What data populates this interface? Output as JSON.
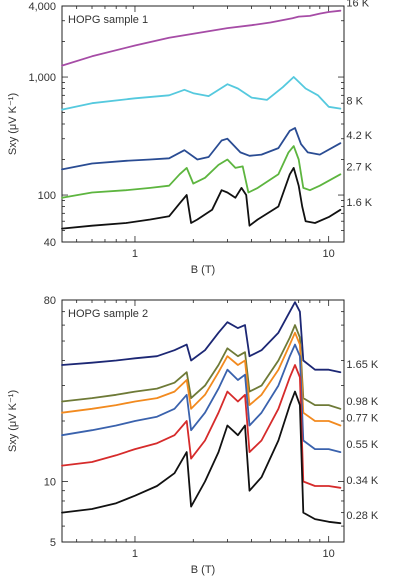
{
  "chart_data": [
    {
      "type": "line",
      "title": "HOPG sample 1",
      "xlabel": "B (T)",
      "ylabel": "Sxy (μV K⁻¹)",
      "xscale": "log",
      "yscale": "log",
      "xlim": [
        0.42,
        12
      ],
      "ylim": [
        40,
        4000
      ],
      "xticks": [
        1,
        10
      ],
      "xtick_labels": [
        "1",
        "10"
      ],
      "yticks": [
        40,
        100,
        1000,
        4000
      ],
      "ytick_labels": [
        "40",
        "100",
        "1,000",
        "4,000"
      ],
      "grid": false,
      "legend": "inline labels at right end of each curve",
      "series": [
        {
          "name": "16 K",
          "color": "#a64ca6",
          "x": [
            0.42,
            0.6,
            1.0,
            1.5,
            2.0,
            3.0,
            4.0,
            5.0,
            6.5,
            7.0,
            8.0,
            9.0,
            10.0,
            11.5
          ],
          "y": [
            1250,
            1500,
            1850,
            2150,
            2330,
            2600,
            2750,
            2900,
            3150,
            3250,
            3300,
            3450,
            3560,
            3650
          ]
        },
        {
          "name": "8 K",
          "color": "#55c9de",
          "x": [
            0.42,
            0.6,
            1.0,
            1.5,
            1.8,
            2.0,
            2.4,
            3.0,
            3.4,
            4.0,
            4.8,
            5.8,
            6.6,
            7.6,
            8.8,
            10.0,
            11.5
          ],
          "y": [
            530,
            600,
            660,
            700,
            780,
            730,
            690,
            870,
            800,
            670,
            640,
            820,
            1000,
            800,
            700,
            560,
            540
          ]
        },
        {
          "name": "4.2 K",
          "color": "#2a4c93",
          "x": [
            0.42,
            0.6,
            0.9,
            1.2,
            1.5,
            1.8,
            2.1,
            2.4,
            2.8,
            3.0,
            3.5,
            3.9,
            4.5,
            5.5,
            6.3,
            6.7,
            7.2,
            7.8,
            9.0,
            11.5
          ],
          "y": [
            165,
            185,
            195,
            200,
            205,
            240,
            200,
            210,
            290,
            300,
            230,
            215,
            220,
            250,
            350,
            370,
            270,
            230,
            220,
            275
          ]
        },
        {
          "name": "2.7 K",
          "color": "#5db53f",
          "x": [
            0.42,
            0.6,
            0.9,
            1.2,
            1.5,
            1.7,
            1.85,
            2.0,
            2.3,
            2.7,
            3.0,
            3.3,
            3.6,
            3.85,
            4.3,
            5.5,
            6.2,
            6.6,
            7.0,
            7.4,
            8.0,
            9.0,
            11.5
          ],
          "y": [
            95,
            105,
            110,
            115,
            120,
            150,
            170,
            125,
            140,
            180,
            200,
            170,
            175,
            105,
            115,
            150,
            230,
            260,
            200,
            115,
            110,
            120,
            150
          ]
        },
        {
          "name": "1.6 K",
          "color": "#111111",
          "x": [
            0.42,
            0.6,
            0.9,
            1.2,
            1.5,
            1.7,
            1.85,
            1.95,
            2.1,
            2.5,
            2.8,
            3.0,
            3.3,
            3.55,
            3.75,
            3.9,
            4.3,
            5.5,
            6.3,
            6.6,
            7.0,
            7.3,
            7.6,
            8.5,
            10.0,
            11.5
          ],
          "y": [
            52,
            55,
            58,
            62,
            66,
            85,
            100,
            58,
            62,
            75,
            110,
            105,
            95,
            115,
            100,
            55,
            62,
            80,
            150,
            170,
            120,
            80,
            60,
            58,
            65,
            75
          ]
        }
      ]
    },
    {
      "type": "line",
      "title": "HOPG sample 2",
      "xlabel": "B (T)",
      "ylabel": "Sxy (μV K⁻¹)",
      "xscale": "log",
      "yscale": "log",
      "xlim": [
        0.42,
        12
      ],
      "ylim": [
        5,
        80
      ],
      "xticks": [
        1,
        10
      ],
      "xtick_labels": [
        "1",
        "10"
      ],
      "yticks": [
        5,
        10,
        80
      ],
      "ytick_labels": [
        "5",
        "10",
        "80"
      ],
      "grid": false,
      "legend": "inline labels at right end of each curve",
      "series": [
        {
          "name": "1.65 K",
          "color": "#1c2774",
          "x": [
            0.42,
            0.6,
            0.8,
            1.0,
            1.3,
            1.6,
            1.85,
            1.95,
            2.3,
            2.7,
            3.0,
            3.4,
            3.7,
            3.9,
            4.5,
            5.5,
            6.3,
            6.7,
            7.1,
            7.4,
            8.5,
            10.0,
            11.5
          ],
          "y": [
            38,
            39,
            40,
            41,
            42,
            45,
            48,
            40,
            45,
            55,
            62,
            58,
            60,
            42,
            45,
            55,
            70,
            78,
            70,
            40,
            36,
            36,
            35
          ]
        },
        {
          "name": "0.98 K",
          "color": "#6e7a37",
          "x": [
            0.42,
            0.6,
            0.8,
            1.0,
            1.3,
            1.6,
            1.85,
            1.95,
            2.3,
            2.7,
            3.0,
            3.4,
            3.7,
            3.9,
            4.5,
            5.5,
            6.3,
            6.7,
            7.1,
            7.4,
            8.5,
            10.0,
            11.5
          ],
          "y": [
            25,
            26,
            27,
            28,
            29,
            31,
            35,
            26,
            30,
            38,
            46,
            42,
            44,
            28,
            30,
            40,
            52,
            60,
            52,
            26,
            24,
            24,
            23
          ]
        },
        {
          "name": "0.77 K",
          "color": "#f28a1f",
          "x": [
            0.42,
            0.6,
            0.8,
            1.0,
            1.3,
            1.6,
            1.85,
            1.95,
            2.3,
            2.7,
            3.0,
            3.4,
            3.7,
            3.9,
            4.5,
            5.5,
            6.3,
            6.7,
            7.1,
            7.4,
            8.5,
            10.0,
            11.5
          ],
          "y": [
            22,
            23,
            24,
            25,
            26,
            28,
            32,
            23,
            27,
            35,
            42,
            38,
            40,
            24,
            27,
            36,
            48,
            55,
            48,
            22,
            20,
            20,
            19
          ]
        },
        {
          "name": "0.55 K",
          "color": "#3a62ad",
          "x": [
            0.42,
            0.6,
            0.8,
            1.0,
            1.3,
            1.6,
            1.85,
            1.95,
            2.3,
            2.7,
            3.0,
            3.4,
            3.7,
            3.9,
            4.5,
            5.5,
            6.3,
            6.7,
            7.1,
            7.4,
            8.5,
            10.0,
            11.5
          ],
          "y": [
            17,
            18,
            19,
            20,
            21,
            23,
            27,
            18,
            22,
            29,
            36,
            32,
            34,
            19,
            22,
            30,
            42,
            48,
            42,
            16,
            14.5,
            14.5,
            14
          ]
        },
        {
          "name": "0.34 K",
          "color": "#d62b2b",
          "x": [
            0.42,
            0.6,
            0.8,
            1.0,
            1.3,
            1.6,
            1.85,
            1.95,
            2.3,
            2.7,
            3.0,
            3.4,
            3.7,
            3.9,
            4.5,
            5.5,
            6.3,
            6.7,
            7.1,
            7.4,
            8.5,
            10.0,
            11.5
          ],
          "y": [
            12,
            12.5,
            13.5,
            14.5,
            15.5,
            17,
            20,
            13,
            16,
            22,
            28,
            25,
            27,
            14,
            16,
            23,
            33,
            38,
            33,
            10,
            9.5,
            9.5,
            9.3
          ]
        },
        {
          "name": "0.28 K",
          "color": "#111111",
          "x": [
            0.42,
            0.6,
            0.8,
            1.0,
            1.3,
            1.6,
            1.85,
            1.95,
            2.3,
            2.7,
            3.0,
            3.4,
            3.7,
            3.9,
            4.5,
            5.5,
            6.3,
            6.7,
            7.1,
            7.4,
            8.5,
            10.0,
            11.5
          ],
          "y": [
            7,
            7.3,
            7.8,
            8.5,
            9.5,
            11,
            14,
            7.5,
            10,
            14,
            19,
            17,
            19,
            9,
            10.5,
            16,
            24,
            28,
            24,
            7,
            6.5,
            6.3,
            6.2
          ]
        }
      ]
    }
  ]
}
